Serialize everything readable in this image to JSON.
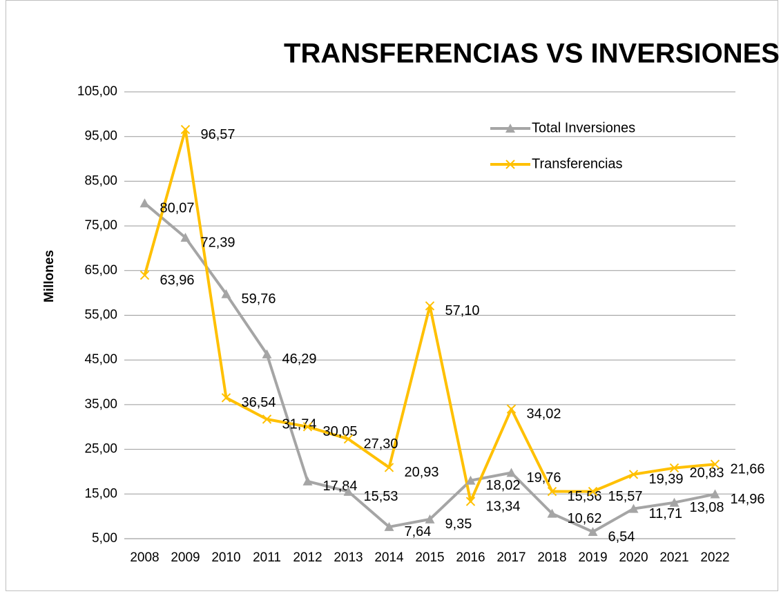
{
  "chart_data": {
    "type": "line",
    "title": "TRANSFERENCIAS VS  INVERSIONES",
    "y_label": "Millones",
    "categories": [
      "2008",
      "2009",
      "2010",
      "2011",
      "2012",
      "2013",
      "2014",
      "2015",
      "2016",
      "2017",
      "2018",
      "2019",
      "2020",
      "2021",
      "2022"
    ],
    "series": [
      {
        "name": "Total Inversiones",
        "color": "#a5a5a5",
        "marker": "triangle",
        "values": [
          80.07,
          72.39,
          59.76,
          46.29,
          17.84,
          15.53,
          7.64,
          9.35,
          18.02,
          19.76,
          10.62,
          6.54,
          11.71,
          13.08,
          14.96
        ],
        "value_labels": [
          "80,07",
          "72,39",
          "59,76",
          "46,29",
          "17,84",
          "15,53",
          "7,64",
          "9,35",
          "18,02",
          "19,76",
          "10,62",
          "6,54",
          "11,71",
          "13,08",
          "14,96"
        ]
      },
      {
        "name": "Transferencias",
        "color": "#ffc000",
        "marker": "x",
        "values": [
          63.96,
          96.57,
          36.54,
          31.74,
          30.05,
          27.3,
          20.93,
          57.1,
          13.34,
          34.02,
          15.56,
          15.57,
          19.39,
          20.83,
          21.66
        ],
        "value_labels": [
          "63,96",
          "96,57",
          "36,54",
          "31,74",
          "30,05",
          "27,30",
          "20,93",
          "57,10",
          "13,34",
          "34,02",
          "15,56",
          "15,57",
          "19,39",
          "20,83",
          "21,66"
        ]
      }
    ],
    "ylim": [
      5,
      105
    ],
    "yticks": [
      {
        "value": 5,
        "label": "5,00"
      },
      {
        "value": 15,
        "label": "15,00"
      },
      {
        "value": 25,
        "label": "25,00"
      },
      {
        "value": 35,
        "label": "35,00"
      },
      {
        "value": 45,
        "label": "45,00"
      },
      {
        "value": 55,
        "label": "55,00"
      },
      {
        "value": 65,
        "label": "65,00"
      },
      {
        "value": 75,
        "label": "75,00"
      },
      {
        "value": 85,
        "label": "85,00"
      },
      {
        "value": 95,
        "label": "95,00"
      },
      {
        "value": 105,
        "label": "105,00"
      }
    ],
    "grid": true
  }
}
